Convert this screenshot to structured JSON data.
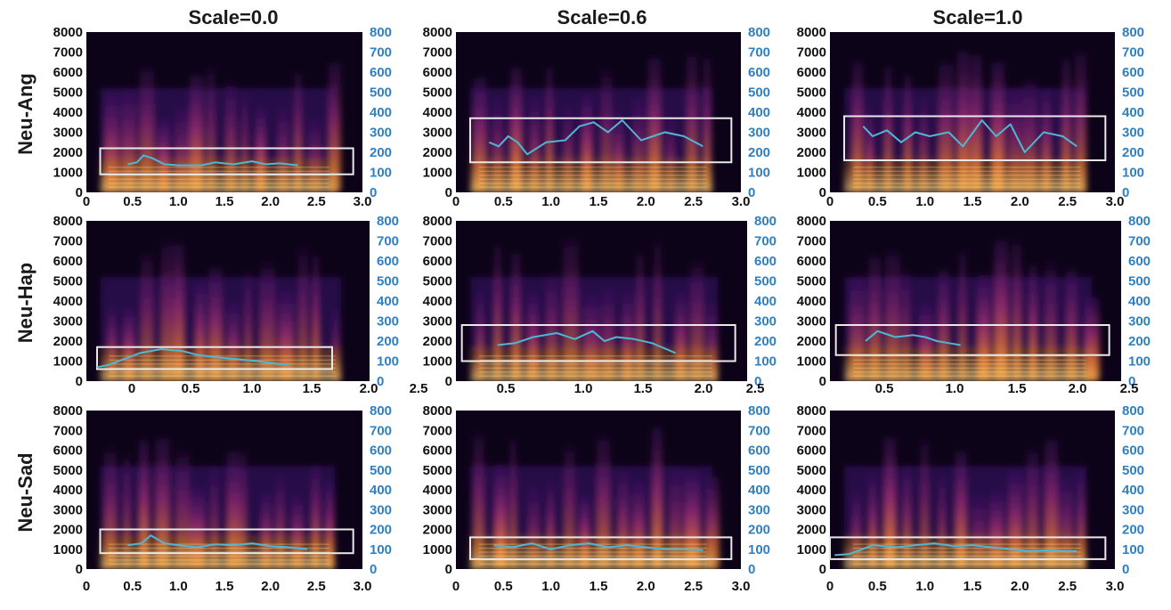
{
  "colors": {
    "spectrogram_background": "#0d0318",
    "spectrogram_low": "#3b0f70",
    "spectrogram_mid": "#b5367a",
    "spectrogram_high": "#fb8d3c",
    "spectrogram_peak": "#fde28c",
    "pitch_line": "#4fb6d6",
    "box": "#e8e8e8",
    "left_axis_text": "#111111",
    "right_axis_text": "#2f7fc1"
  },
  "chart_data": [
    {
      "type": "heatmap",
      "row_label": "Neu-Ang",
      "title": "Scale=0.0",
      "y_ticks": [
        "0",
        "1000",
        "2000",
        "3000",
        "4000",
        "5000",
        "6000",
        "7000",
        "8000"
      ],
      "y2_ticks": [
        "0",
        "100",
        "200",
        "300",
        "400",
        "500",
        "600",
        "700",
        "800"
      ],
      "x_ticks": [
        "0",
        "0.5",
        "1.0",
        "1.5",
        "2.0",
        "2.5",
        "3.0"
      ],
      "xlim": [
        0,
        3.0
      ],
      "ylim": [
        0,
        8000
      ],
      "y2lim": [
        0,
        800
      ],
      "highlight_box": {
        "x": [
          0.15,
          2.9
        ],
        "y": [
          900,
          2200
        ]
      },
      "pitch": {
        "x": [
          0.45,
          0.55,
          0.62,
          0.72,
          0.85,
          1.0,
          1.25,
          1.4,
          1.6,
          1.8,
          1.95,
          2.1,
          2.3
        ],
        "y": [
          140,
          150,
          185,
          170,
          140,
          135,
          135,
          150,
          140,
          155,
          140,
          145,
          135
        ]
      }
    },
    {
      "type": "heatmap",
      "row_label": "Neu-Ang",
      "title": "Scale=0.6",
      "y_ticks": [
        "0",
        "1000",
        "2000",
        "3000",
        "4000",
        "5000",
        "6000",
        "7000",
        "8000"
      ],
      "y2_ticks": [
        "0",
        "100",
        "200",
        "300",
        "400",
        "500",
        "600",
        "700",
        "800"
      ],
      "x_ticks": [
        "0",
        "0.5",
        "1.0",
        "1.5",
        "2.0",
        "2.5",
        "3.0"
      ],
      "xlim": [
        0,
        3.0
      ],
      "ylim": [
        0,
        8000
      ],
      "y2lim": [
        0,
        800
      ],
      "highlight_box": {
        "x": [
          0.15,
          2.9
        ],
        "y": [
          1500,
          3700
        ]
      },
      "pitch": {
        "x": [
          0.35,
          0.45,
          0.55,
          0.65,
          0.75,
          0.95,
          1.15,
          1.3,
          1.45,
          1.6,
          1.75,
          1.95,
          2.2,
          2.4,
          2.6
        ],
        "y": [
          250,
          230,
          280,
          250,
          190,
          250,
          260,
          330,
          350,
          300,
          360,
          260,
          300,
          280,
          230
        ]
      }
    },
    {
      "type": "heatmap",
      "row_label": "Neu-Ang",
      "title": "Scale=1.0",
      "y_ticks": [
        "0",
        "1000",
        "2000",
        "3000",
        "4000",
        "5000",
        "6000",
        "7000",
        "8000"
      ],
      "y2_ticks": [
        "0",
        "100",
        "200",
        "300",
        "400",
        "500",
        "600",
        "700",
        "800"
      ],
      "x_ticks": [
        "0",
        "0.5",
        "1.0",
        "1.5",
        "2.0",
        "2.5",
        "3.0"
      ],
      "xlim": [
        0,
        3.0
      ],
      "ylim": [
        0,
        8000
      ],
      "y2lim": [
        0,
        800
      ],
      "highlight_box": {
        "x": [
          0.15,
          2.9
        ],
        "y": [
          1600,
          3800
        ]
      },
      "pitch": {
        "x": [
          0.35,
          0.45,
          0.6,
          0.75,
          0.9,
          1.05,
          1.25,
          1.4,
          1.6,
          1.75,
          1.9,
          2.05,
          2.25,
          2.45,
          2.6
        ],
        "y": [
          330,
          280,
          310,
          250,
          300,
          280,
          300,
          230,
          360,
          280,
          340,
          200,
          300,
          280,
          230
        ]
      }
    },
    {
      "type": "heatmap",
      "row_label": "Neu-Hap",
      "title": "",
      "y_ticks": [
        "0",
        "1000",
        "2000",
        "3000",
        "4000",
        "5000",
        "6000",
        "7000",
        "8000"
      ],
      "y2_ticks": [
        "0",
        "100",
        "200",
        "300",
        "400",
        "500",
        "600",
        "700",
        "800"
      ],
      "x_ticks": [
        "0",
        "0.5",
        "1.0",
        "1.5",
        "2.0",
        "2.5"
      ],
      "xlim": [
        -0.4,
        2.25
      ],
      "ylim": [
        0,
        8000
      ],
      "y2lim": [
        0,
        800
      ],
      "highlight_box": {
        "x": [
          -0.3,
          1.9
        ],
        "y": [
          600,
          1700
        ]
      },
      "pitch": {
        "x": [
          -0.3,
          -0.2,
          0.1,
          0.3,
          0.5,
          0.65,
          0.8,
          1.0,
          1.2,
          1.4,
          1.5
        ],
        "y": [
          70,
          80,
          140,
          160,
          150,
          130,
          120,
          110,
          100,
          85,
          85
        ]
      }
    },
    {
      "type": "heatmap",
      "row_label": "Neu-Hap",
      "title": "",
      "y_ticks": [
        "0",
        "1000",
        "2000",
        "3000",
        "4000",
        "5000",
        "6000",
        "7000",
        "8000"
      ],
      "y2_ticks": [
        "0",
        "100",
        "200",
        "300",
        "400",
        "500",
        "600",
        "700",
        "800"
      ],
      "x_ticks": [
        "0.5",
        "1.0",
        "1.5",
        "2.0",
        "2.5"
      ],
      "xlim": [
        0.05,
        2.5
      ],
      "ylim": [
        0,
        8000
      ],
      "y2lim": [
        0,
        800
      ],
      "highlight_box": {
        "x": [
          0.1,
          2.4
        ],
        "y": [
          1000,
          2800
        ]
      },
      "pitch": {
        "x": [
          0.4,
          0.55,
          0.7,
          0.9,
          1.05,
          1.2,
          1.3,
          1.4,
          1.55,
          1.7,
          1.9
        ],
        "y": [
          180,
          190,
          220,
          240,
          210,
          250,
          200,
          220,
          210,
          190,
          140
        ]
      }
    },
    {
      "type": "heatmap",
      "row_label": "Neu-Hap",
      "title": "",
      "y_ticks": [
        "0",
        "1000",
        "2000",
        "3000",
        "4000",
        "5000",
        "6000",
        "7000",
        "8000"
      ],
      "y2_ticks": [
        "0",
        "100",
        "200",
        "300",
        "400",
        "500",
        "600",
        "700",
        "800"
      ],
      "x_ticks": [
        "0.5",
        "1.0",
        "1.5",
        "2.0",
        "2.5"
      ],
      "xlim": [
        0.05,
        2.5
      ],
      "ylim": [
        0,
        8000
      ],
      "y2lim": [
        0,
        800
      ],
      "highlight_box": {
        "x": [
          0.1,
          2.4
        ],
        "y": [
          1300,
          2800
        ]
      },
      "pitch": {
        "x": [
          0.35,
          0.45,
          0.6,
          0.75,
          0.85,
          0.95,
          1.05,
          1.15
        ],
        "y": [
          200,
          250,
          220,
          230,
          220,
          200,
          190,
          180
        ]
      }
    },
    {
      "type": "heatmap",
      "row_label": "Neu-Sad",
      "title": "",
      "y_ticks": [
        "0",
        "1000",
        "2000",
        "3000",
        "4000",
        "5000",
        "6000",
        "7000",
        "8000"
      ],
      "y2_ticks": [
        "0",
        "100",
        "200",
        "300",
        "400",
        "500",
        "600",
        "700",
        "800"
      ],
      "x_ticks": [
        "0",
        "0.5",
        "1.0",
        "1.5",
        "2.0",
        "2.5",
        "3.0"
      ],
      "xlim": [
        0,
        3.0
      ],
      "ylim": [
        0,
        8000
      ],
      "y2lim": [
        0,
        800
      ],
      "highlight_box": {
        "x": [
          0.15,
          2.9
        ],
        "y": [
          800,
          2000
        ]
      },
      "pitch": {
        "x": [
          0.45,
          0.6,
          0.7,
          0.85,
          1.0,
          1.2,
          1.4,
          1.6,
          1.8,
          2.0,
          2.2,
          2.4
        ],
        "y": [
          120,
          130,
          170,
          130,
          120,
          110,
          125,
          120,
          130,
          115,
          110,
          100
        ]
      }
    },
    {
      "type": "heatmap",
      "row_label": "Neu-Sad",
      "title": "",
      "y_ticks": [
        "0",
        "1000",
        "2000",
        "3000",
        "4000",
        "5000",
        "6000",
        "7000",
        "8000"
      ],
      "y2_ticks": [
        "0",
        "100",
        "200",
        "300",
        "400",
        "500",
        "600",
        "700",
        "800"
      ],
      "x_ticks": [
        "0",
        "0.5",
        "1.0",
        "1.5",
        "2.0",
        "2.5",
        "3.0"
      ],
      "xlim": [
        0,
        3.0
      ],
      "ylim": [
        0,
        8000
      ],
      "y2lim": [
        0,
        800
      ],
      "highlight_box": {
        "x": [
          0.15,
          2.9
        ],
        "y": [
          500,
          1600
        ]
      },
      "pitch": {
        "x": [
          0.4,
          0.6,
          0.8,
          1.0,
          1.2,
          1.4,
          1.6,
          1.8,
          2.0,
          2.2,
          2.4,
          2.6
        ],
        "y": [
          120,
          110,
          130,
          100,
          120,
          130,
          110,
          120,
          110,
          100,
          100,
          95
        ]
      }
    },
    {
      "type": "heatmap",
      "row_label": "Neu-Sad",
      "title": "",
      "y_ticks": [
        "0",
        "1000",
        "2000",
        "3000",
        "4000",
        "5000",
        "6000",
        "7000",
        "8000"
      ],
      "y2_ticks": [
        "0",
        "100",
        "200",
        "300",
        "400",
        "500",
        "600",
        "700",
        "800"
      ],
      "x_ticks": [
        "0",
        "0.5",
        "1.0",
        "1.5",
        "2.0",
        "2.5",
        "3.0"
      ],
      "xlim": [
        0,
        3.0
      ],
      "ylim": [
        0,
        8000
      ],
      "y2lim": [
        0,
        800
      ],
      "highlight_box": {
        "x": [
          0.0,
          2.9
        ],
        "y": [
          500,
          1600
        ]
      },
      "pitch": {
        "x": [
          0.05,
          0.2,
          0.45,
          0.7,
          0.9,
          1.1,
          1.3,
          1.5,
          1.7,
          1.9,
          2.1,
          2.3,
          2.5,
          2.6
        ],
        "y": [
          70,
          75,
          120,
          110,
          120,
          130,
          115,
          120,
          110,
          100,
          90,
          95,
          90,
          90
        ]
      }
    }
  ]
}
